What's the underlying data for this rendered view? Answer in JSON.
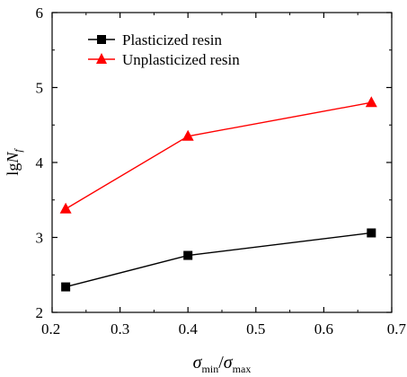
{
  "chart_data": {
    "type": "line",
    "title": "",
    "xlabel": {
      "main": "σ",
      "sub1": "min",
      "slash": "/",
      "main2": "σ",
      "sub2": "max"
    },
    "ylabel": {
      "prefix": "lg",
      "main": "N",
      "sub": "f"
    },
    "xlim": [
      0.2,
      0.7
    ],
    "ylim": [
      2,
      6
    ],
    "xticks": [
      0.2,
      0.3,
      0.4,
      0.5,
      0.6,
      0.7
    ],
    "xtick_labels": [
      "0.2",
      "0.3",
      "0.4",
      "0.5",
      "0.6",
      "0.7"
    ],
    "yticks": [
      2,
      3,
      4,
      5,
      6
    ],
    "ytick_labels": [
      "2",
      "3",
      "4",
      "5",
      "6"
    ],
    "grid": false,
    "legend_position": "top-left",
    "series": [
      {
        "name": "Plasticized resin",
        "marker": "square",
        "color": "#000000",
        "x": [
          0.22,
          0.4,
          0.67
        ],
        "y": [
          2.34,
          2.76,
          3.06
        ]
      },
      {
        "name": "Unplasticized resin",
        "marker": "triangle",
        "color": "#ff0000",
        "x": [
          0.22,
          0.4,
          0.67
        ],
        "y": [
          3.38,
          4.35,
          4.8
        ]
      }
    ]
  }
}
